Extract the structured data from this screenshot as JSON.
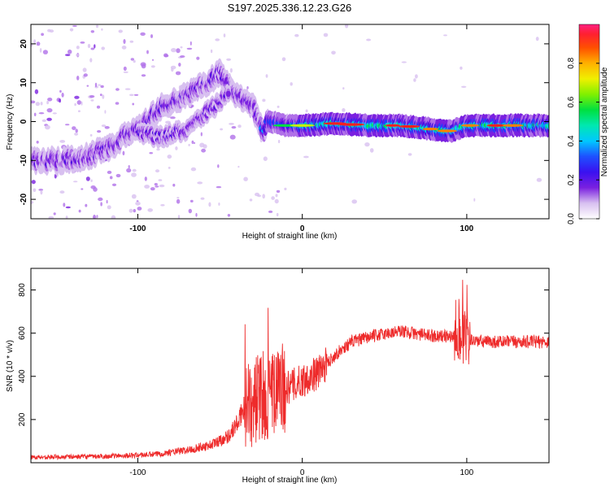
{
  "title": "S197.2025.336.12.23.G26",
  "colors": {
    "snr_line": "#ee2b2b",
    "axis": "#000000",
    "ramp": [
      "#ffffff",
      "#d8c0f0",
      "#b070e8",
      "#7a20e0",
      "#4a10e0",
      "#1e40ff",
      "#00b4ff",
      "#00e8c8",
      "#00e040",
      "#c8f000",
      "#ffd000",
      "#ff8000",
      "#ff2020",
      "#ff2080"
    ]
  },
  "chart_data": [
    {
      "id": "spectrogram",
      "type": "heatmap",
      "xlabel": "Height of straight line (km)",
      "ylabel": "Frequency (Hz)",
      "xlim": [
        -165,
        150
      ],
      "ylim": [
        -25,
        25
      ],
      "xticks": [
        -100,
        0,
        100
      ],
      "yticks": [
        -20,
        -10,
        0,
        10,
        20
      ],
      "ridge": {
        "x": [
          -165,
          -145,
          -130,
          -115,
          -105,
          -95,
          -85,
          -75,
          -65,
          -55,
          -50,
          -45,
          -40,
          -35,
          -30,
          -25,
          -20,
          -10,
          0,
          20,
          40,
          60,
          80,
          90,
          100,
          120,
          150
        ],
        "y": [
          -10,
          -10,
          -9,
          -6,
          -3,
          0,
          4,
          6,
          8,
          11,
          13,
          9,
          7,
          6,
          4,
          -2,
          0,
          -1,
          -1,
          -0.5,
          -1,
          -1,
          -2,
          -2.5,
          -1,
          -1,
          -1
        ]
      },
      "ridge2": {
        "x": [
          -100,
          -85,
          -70,
          -60,
          -50,
          -45
        ],
        "y": [
          -3,
          -4,
          -2,
          2,
          5,
          8
        ]
      },
      "colorbar": {
        "label": "Normalized spectral amplitude",
        "range": [
          0,
          1
        ],
        "ticks": [
          0.0,
          0.2,
          0.4,
          0.6,
          0.8
        ],
        "tick_labels": [
          "0.0",
          "0.2",
          "0.4",
          "0.6",
          "0.8"
        ]
      }
    },
    {
      "id": "snr",
      "type": "line",
      "xlabel": "Height of straight line (km)",
      "ylabel": "SNR (10 * v/v)",
      "xlim": [
        -165,
        150
      ],
      "ylim": [
        0,
        900
      ],
      "xticks": [
        -100,
        0,
        100
      ],
      "yticks": [
        200,
        400,
        600,
        800
      ],
      "profile": {
        "x": [
          -165,
          -120,
          -90,
          -70,
          -55,
          -45,
          -38,
          -33,
          -28,
          -22,
          -15,
          -8,
          0,
          10,
          20,
          30,
          45,
          60,
          75,
          90,
          95,
          100,
          110,
          130,
          150
        ],
        "y": [
          15,
          18,
          25,
          40,
          60,
          90,
          150,
          250,
          300,
          310,
          320,
          350,
          380,
          420,
          500,
          560,
          590,
          610,
          590,
          585,
          590,
          570,
          560,
          560,
          560
        ]
      }
    }
  ]
}
